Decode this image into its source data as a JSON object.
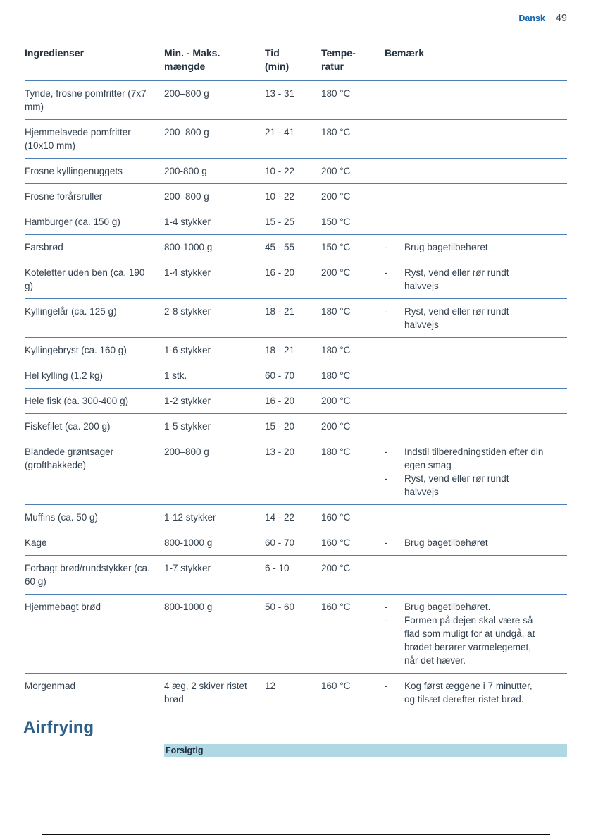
{
  "page_header": {
    "language": "Dansk",
    "page_number": "49"
  },
  "table": {
    "headers": [
      {
        "label": "Ingredienser"
      },
      {
        "label": "Min. - Maks.\nmængde"
      },
      {
        "label": "Tid\n(min)"
      },
      {
        "label": "Tempe-\nratur"
      },
      {
        "label": "Bemærk"
      }
    ],
    "rows": [
      {
        "ingredient": "Tynde, frosne pomfritter (7x7 mm)",
        "amount": "200–800 g",
        "time": "13 - 31",
        "temperature": "180 °C",
        "remarks": []
      },
      {
        "ingredient": "Hjemmelavede pomfritter (10x10 mm)",
        "amount": "200–800 g",
        "time": "21 - 41",
        "temperature": "180 °C",
        "remarks": []
      },
      {
        "ingredient": "Frosne kyllingenuggets",
        "amount": "200-800 g",
        "time": "10 - 22",
        "temperature": "200 °C",
        "remarks": []
      },
      {
        "ingredient": "Frosne forårsruller",
        "amount": "200–800 g",
        "time": "10 - 22",
        "temperature": "200 °C",
        "remarks": []
      },
      {
        "ingredient": "Hamburger (ca. 150 g)",
        "amount": "1-4 stykker",
        "time": "15 - 25",
        "temperature": "150 °C",
        "remarks": []
      },
      {
        "ingredient": "Farsbrød",
        "amount": "800-1000 g",
        "time": "45 - 55",
        "temperature": "150 °C",
        "remarks": [
          "Brug bagetilbehøret"
        ]
      },
      {
        "ingredient": "Koteletter uden ben (ca. 190 g)",
        "amount": "1-4 stykker",
        "time": "16 - 20",
        "temperature": "200 °C",
        "remarks": [
          "Ryst, vend eller rør rundt halvvejs"
        ]
      },
      {
        "ingredient": "Kyllingelår (ca. 125 g)",
        "amount": "2-8 stykker",
        "time": "18 - 21",
        "temperature": "180 °C",
        "remarks": [
          "Ryst, vend eller rør rundt halvvejs"
        ]
      },
      {
        "ingredient": "Kyllingebryst (ca. 160 g)",
        "amount": "1-6 stykker",
        "time": "18 - 21",
        "temperature": "180 °C",
        "remarks": []
      },
      {
        "ingredient": "Hel kylling (1.2 kg)",
        "amount": "1 stk.",
        "time": "60 - 70",
        "temperature": "180 °C",
        "remarks": []
      },
      {
        "ingredient": "Hele fisk (ca. 300-400 g)",
        "amount": "1-2 stykker",
        "time": "16 - 20",
        "temperature": "200 °C",
        "remarks": []
      },
      {
        "ingredient": "Fiskefilet (ca. 200 g)",
        "amount": "1-5 stykker",
        "time": "15 - 20",
        "temperature": "200 °C",
        "remarks": []
      },
      {
        "ingredient": "Blandede grøntsager (grofthakkede)",
        "amount": "200–800 g",
        "time": "13 - 20",
        "temperature": "180 °C",
        "remarks": [
          "Indstil tilberedningstiden efter din egen smag",
          "Ryst, vend eller rør rundt halvvejs"
        ]
      },
      {
        "ingredient": "Muffins (ca. 50 g)",
        "amount": "1-12 stykker",
        "time": "14 - 22",
        "temperature": "160 °C",
        "remarks": []
      },
      {
        "ingredient": "Kage",
        "amount": "800-1000 g",
        "time": "60 - 70",
        "temperature": "160 °C",
        "remarks": [
          "Brug bagetilbehøret"
        ]
      },
      {
        "ingredient": "Forbagt brød/rundstykker (ca. 60 g)",
        "amount": "1-7 stykker",
        "time": "6 - 10",
        "temperature": "200 °C",
        "remarks": []
      },
      {
        "ingredient": "Hjemmebagt brød",
        "amount": "800-1000 g",
        "time": "50 - 60",
        "temperature": "160 °C",
        "remarks": [
          "Brug bagetilbehøret.",
          "Formen på dejen skal være så flad som muligt for at undgå, at brødet berører varmelegemet, når det hæver."
        ]
      },
      {
        "ingredient": "Morgenmad",
        "amount": "4 æg, 2 skiver ristet brød",
        "time": "12",
        "temperature": "160 °C",
        "remarks": [
          "Kog først æggene i 7 minutter, og tilsæt derefter ristet brød."
        ]
      }
    ]
  },
  "section": {
    "title": "Airfrying"
  },
  "caution": {
    "label": "Forsigtig"
  }
}
